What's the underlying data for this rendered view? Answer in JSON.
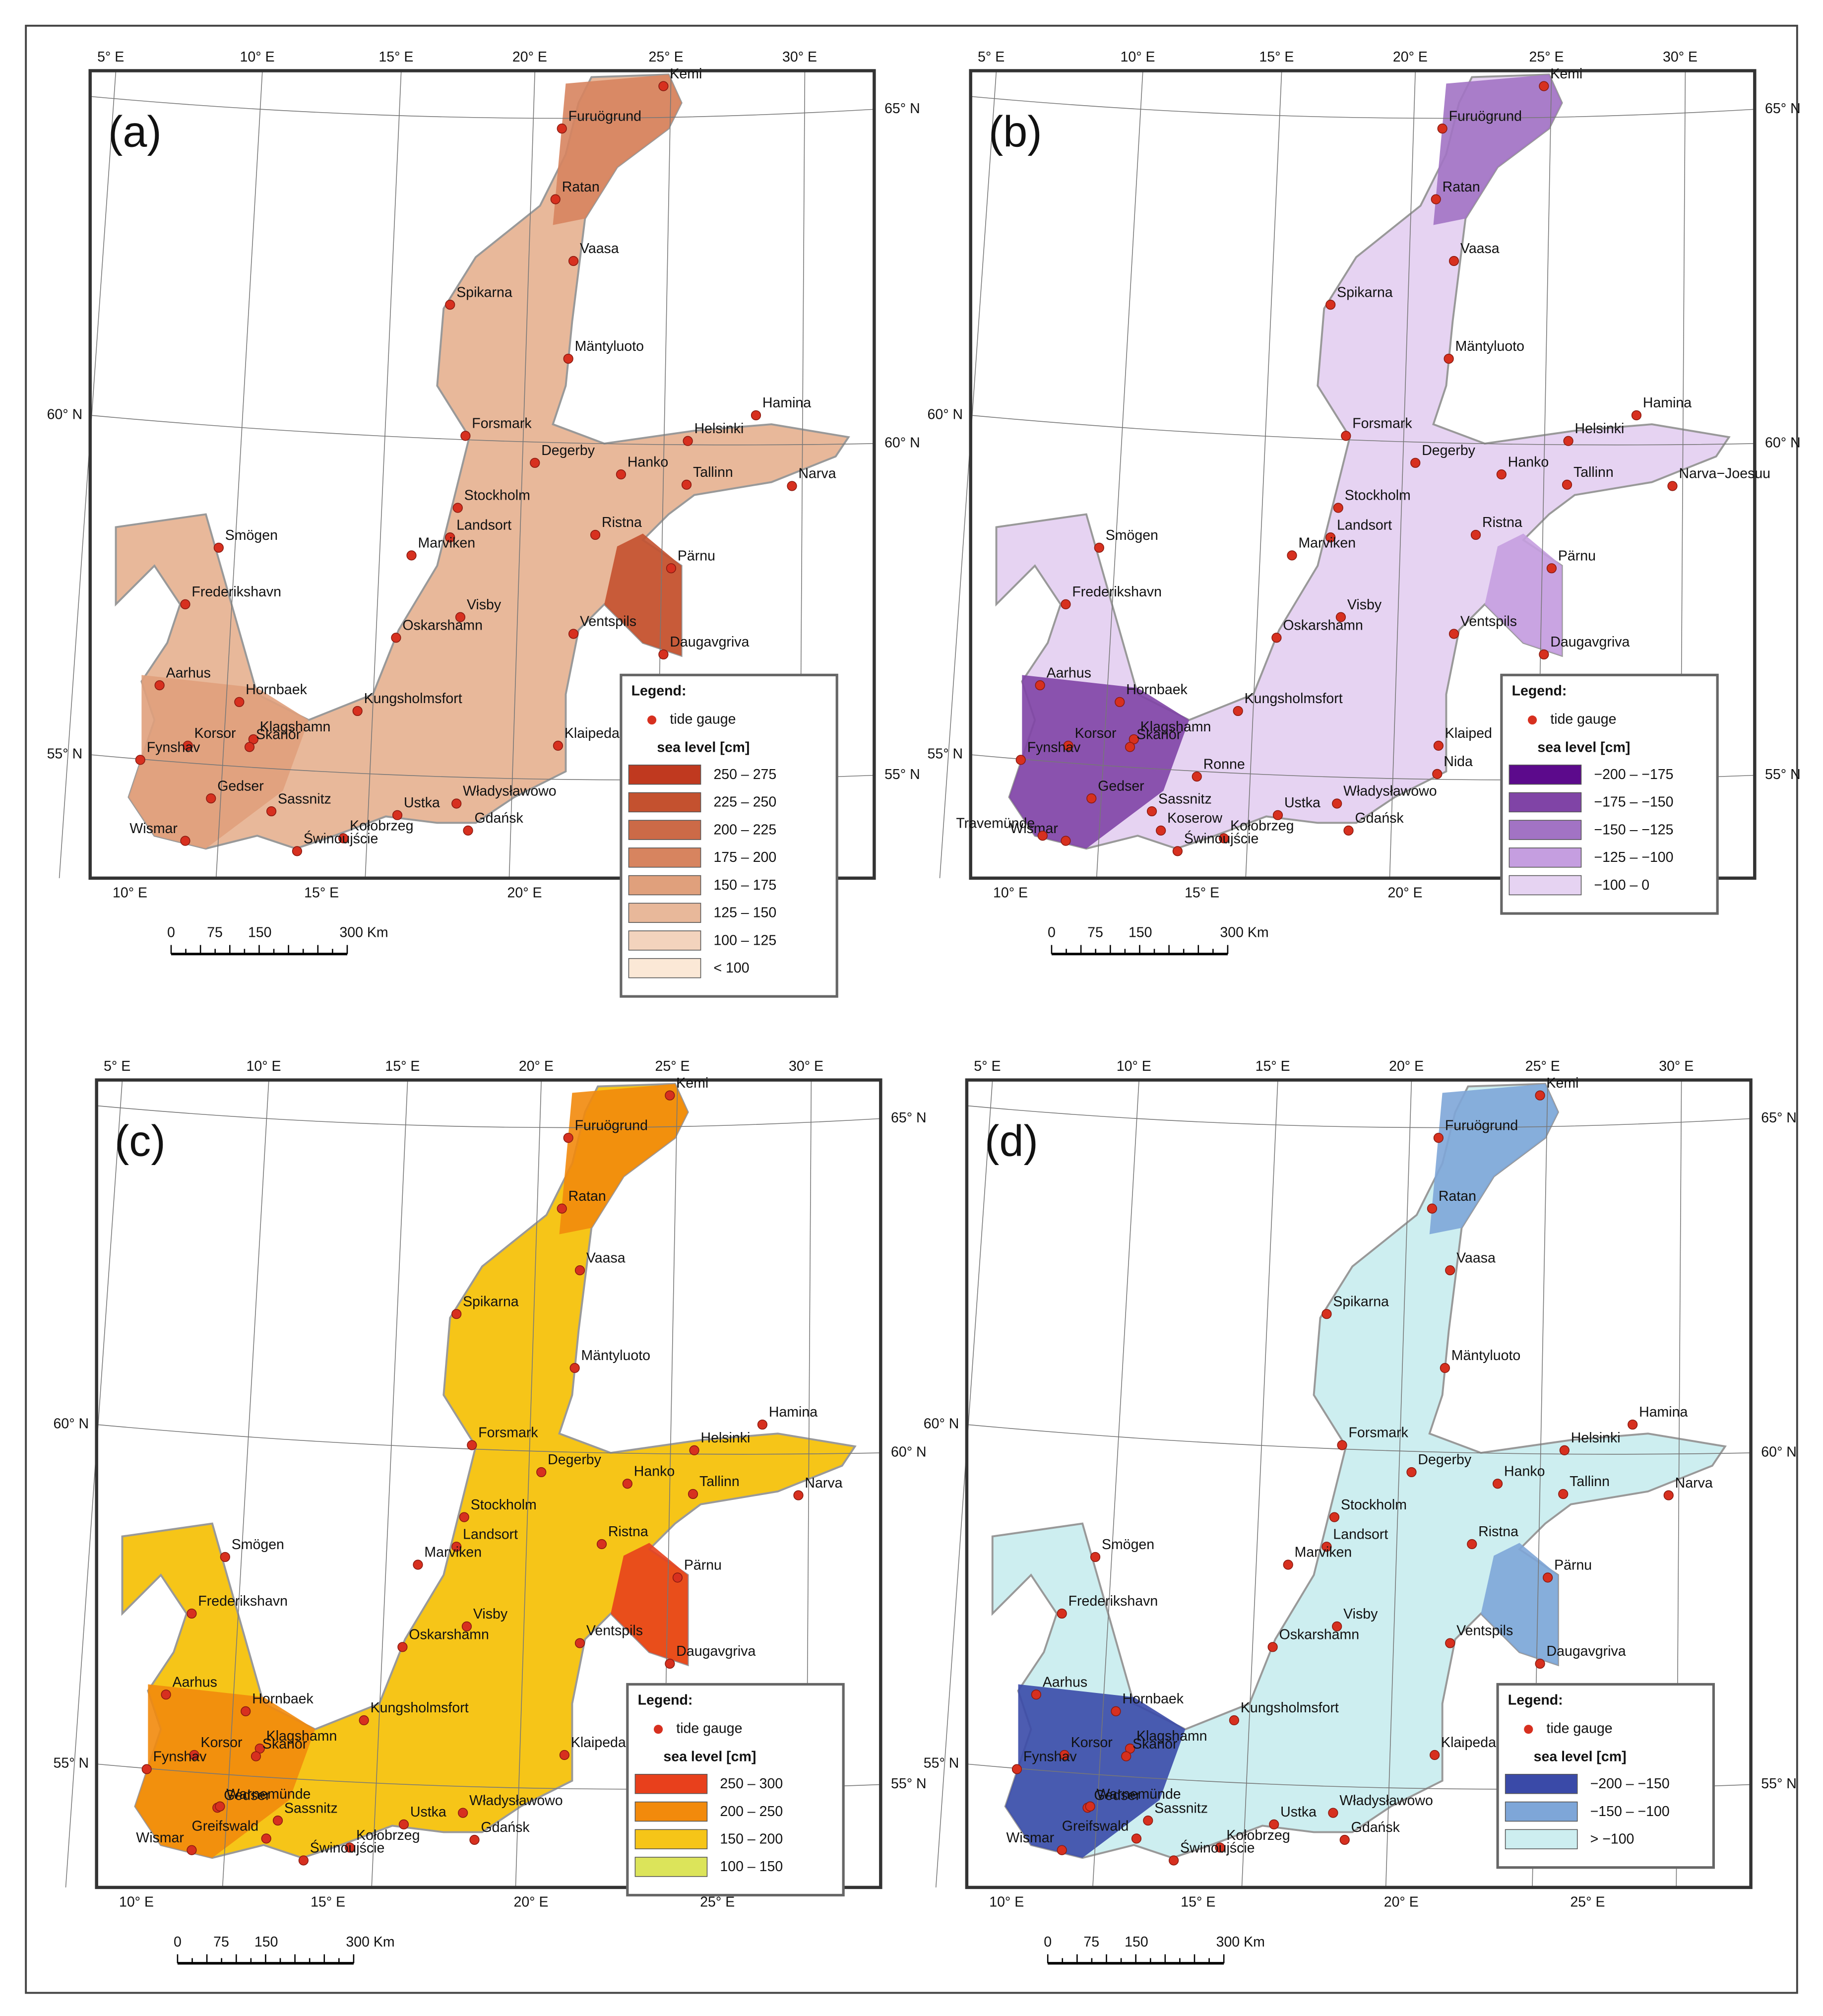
{
  "graticule": {
    "top": [
      "5° E",
      "10° E",
      "15° E",
      "20° E",
      "25° E",
      "30° E"
    ],
    "lat": [
      "65° N",
      "60° N",
      "55° N"
    ],
    "bottom": [
      "10° E",
      "15° E",
      "20° E",
      "25° E"
    ]
  },
  "scale_bar": [
    "0",
    "75",
    "150",
    "300 Km"
  ],
  "legend_title": "Legend:",
  "legend_gauge": "tide gauge",
  "legend_unit": "sea level [cm]",
  "panels": [
    {
      "label": "(a)",
      "classes": [
        {
          "label": "250 – 275",
          "color": "#c0391f"
        },
        {
          "label": "225 – 250",
          "color": "#c4512f"
        },
        {
          "label": "200 – 225",
          "color": "#cc6a47"
        },
        {
          "label": "175 – 200",
          "color": "#d7845f"
        },
        {
          "label": "150 – 175",
          "color": "#e0a07c"
        },
        {
          "label": "125 – 150",
          "color": "#e8b89a"
        },
        {
          "label": "100 – 125",
          "color": "#f3d3bd"
        },
        {
          "label": "< 100",
          "color": "#fbe8d6"
        }
      ],
      "stations": [
        "Kemi",
        "Furuögrund",
        "Ratan",
        "Vaasa",
        "Spikarna",
        "Mäntyluoto",
        "Forsmark",
        "Degerby",
        "Hanko",
        "Helsinki",
        "Hamina",
        "Tallinn",
        "Narva",
        "Stockholm",
        "Landsort",
        "Marviken",
        "Ristna",
        "Pärnu",
        "Visby",
        "Oskarshamn",
        "Ventspils",
        "Daugavgriva",
        "Smögen",
        "Frederikshavn",
        "Aarhus",
        "Hornbaek",
        "Kungsholmsfort",
        "Klaipeda",
        "Korsor",
        "Klagshamn",
        "Skanör",
        "Fynshav",
        "Gedser",
        "Sassnitz",
        "Ustka",
        "Władysławowo",
        "Gdańsk",
        "Kołobrzeg",
        "Wismar",
        "Świnoujście"
      ]
    },
    {
      "label": "(b)",
      "classes": [
        {
          "label": "−200 – −175",
          "color": "#5c0a8c"
        },
        {
          "label": "−175 – −150",
          "color": "#8044a6"
        },
        {
          "label": "−150 – −125",
          "color": "#a273c4"
        },
        {
          "label": "−125 – −100",
          "color": "#c59ee0"
        },
        {
          "label": "−100 – 0",
          "color": "#e6d3f2"
        }
      ],
      "stations": [
        "Kemi",
        "Furuögrund",
        "Ratan",
        "Vaasa",
        "Spikarna",
        "Mäntyluoto",
        "Forsmark",
        "Degerby",
        "Hanko",
        "Helsinki",
        "Hamina",
        "Tallinn",
        "Narva−Joesuu",
        "Stockholm",
        "Landsort",
        "Marviken",
        "Ristna",
        "Pärnu",
        "Visby",
        "Oskarshamn",
        "Ventspils",
        "Daugavgriva",
        "Smögen",
        "Frederikshavn",
        "Aarhus",
        "Hornbaek",
        "Kungsholmsfort",
        "Klaiped",
        "Korsor",
        "Klagshamn",
        "Skanör",
        "Fynshav",
        "Gedser",
        "Sassnitz",
        "Ustka",
        "Władysławowo",
        "Gdańsk",
        "Kołobrzeg",
        "Wismar",
        "Świnoujście",
        "Ronne",
        "Nida",
        "Koserow",
        "Travemünde"
      ]
    },
    {
      "label": "(c)",
      "classes": [
        {
          "label": "250 – 300",
          "color": "#e8401c"
        },
        {
          "label": "200 – 250",
          "color": "#f28a0c"
        },
        {
          "label": "150 – 200",
          "color": "#f6c518"
        },
        {
          "label": "100 – 150",
          "color": "#dce45a"
        }
      ],
      "stations": [
        "Kemi",
        "Furuögrund",
        "Ratan",
        "Vaasa",
        "Spikarna",
        "Mäntyluoto",
        "Forsmark",
        "Degerby",
        "Hanko",
        "Helsinki",
        "Hamina",
        "Tallinn",
        "Narva",
        "Stockholm",
        "Landsort",
        "Marviken",
        "Ristna",
        "Pärnu",
        "Visby",
        "Oskarshamn",
        "Ventspils",
        "Daugavgriva",
        "Smögen",
        "Frederikshavn",
        "Aarhus",
        "Hornbaek",
        "Kungsholmsfort",
        "Klaipeda",
        "Korsor",
        "Klagshamn",
        "Skanör",
        "Fynshav",
        "Gedser",
        "Sassnitz",
        "Ustka",
        "Władysławowo",
        "Gdańsk",
        "Kołobrzeg",
        "Wismar",
        "Świnoujście",
        "Warnemünde",
        "Greifswald"
      ]
    },
    {
      "label": "(d)",
      "classes": [
        {
          "label": "−200 – −150",
          "color": "#3a4aa8"
        },
        {
          "label": "−150 – −100",
          "color": "#7ea6d8"
        },
        {
          "label": "> −100",
          "color": "#cdeef0"
        }
      ],
      "stations": [
        "Kemi",
        "Furuögrund",
        "Ratan",
        "Vaasa",
        "Spikarna",
        "Mäntyluoto",
        "Forsmark",
        "Degerby",
        "Hanko",
        "Helsinki",
        "Hamina",
        "Tallinn",
        "Narva",
        "Stockholm",
        "Landsort",
        "Marviken",
        "Ristna",
        "Pärnu",
        "Visby",
        "Oskarshamn",
        "Ventspils",
        "Daugavgriva",
        "Smögen",
        "Frederikshavn",
        "Aarhus",
        "Hornbaek",
        "Kungsholmsfort",
        "Klaipeda",
        "Korsor",
        "Klagshamn",
        "Skanör",
        "Fynshav",
        "Gedser",
        "Sassnitz",
        "Ustka",
        "Władysławowo",
        "Gdańsk",
        "Kołobrzeg",
        "Wismar",
        "Świnoujście",
        "Warnemünde",
        "Greifswald"
      ]
    }
  ]
}
